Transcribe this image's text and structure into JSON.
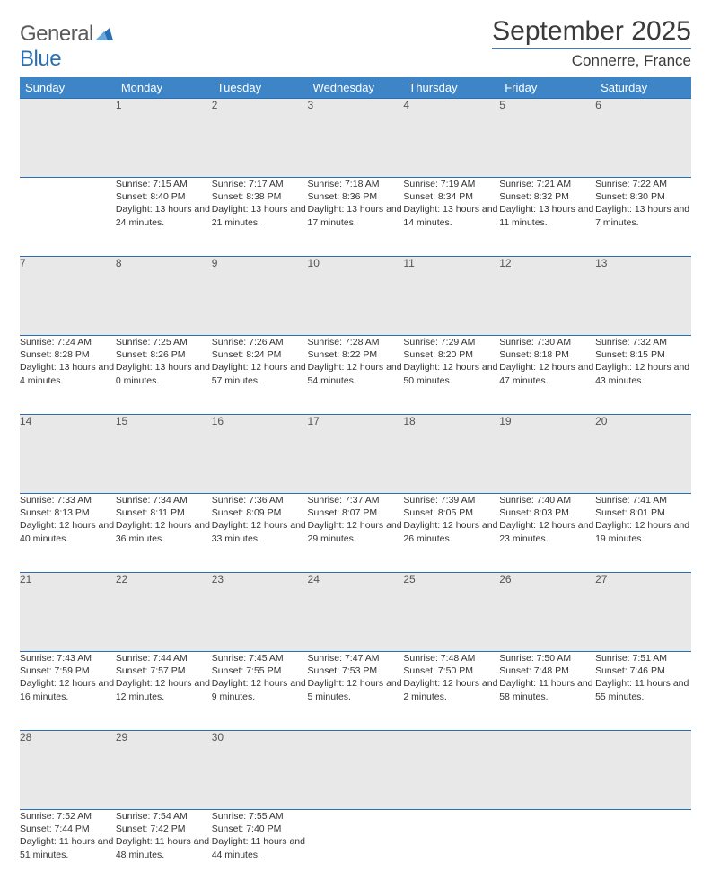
{
  "logo": {
    "text1": "General",
    "text2": "Blue"
  },
  "title": "September 2025",
  "location": "Connerre, France",
  "headers": [
    "Sunday",
    "Monday",
    "Tuesday",
    "Wednesday",
    "Thursday",
    "Friday",
    "Saturday"
  ],
  "colors": {
    "header_bg": "#3d85c6",
    "border": "#2b6fb0",
    "daynum_bg": "#e8e8e8",
    "text": "#333333"
  },
  "weeks": [
    {
      "nums": [
        "",
        "1",
        "2",
        "3",
        "4",
        "5",
        "6"
      ],
      "cells": [
        "",
        "Sunrise: 7:15 AM\nSunset: 8:40 PM\nDaylight: 13 hours and 24 minutes.",
        "Sunrise: 7:17 AM\nSunset: 8:38 PM\nDaylight: 13 hours and 21 minutes.",
        "Sunrise: 7:18 AM\nSunset: 8:36 PM\nDaylight: 13 hours and 17 minutes.",
        "Sunrise: 7:19 AM\nSunset: 8:34 PM\nDaylight: 13 hours and 14 minutes.",
        "Sunrise: 7:21 AM\nSunset: 8:32 PM\nDaylight: 13 hours and 11 minutes.",
        "Sunrise: 7:22 AM\nSunset: 8:30 PM\nDaylight: 13 hours and 7 minutes."
      ]
    },
    {
      "nums": [
        "7",
        "8",
        "9",
        "10",
        "11",
        "12",
        "13"
      ],
      "cells": [
        "Sunrise: 7:24 AM\nSunset: 8:28 PM\nDaylight: 13 hours and 4 minutes.",
        "Sunrise: 7:25 AM\nSunset: 8:26 PM\nDaylight: 13 hours and 0 minutes.",
        "Sunrise: 7:26 AM\nSunset: 8:24 PM\nDaylight: 12 hours and 57 minutes.",
        "Sunrise: 7:28 AM\nSunset: 8:22 PM\nDaylight: 12 hours and 54 minutes.",
        "Sunrise: 7:29 AM\nSunset: 8:20 PM\nDaylight: 12 hours and 50 minutes.",
        "Sunrise: 7:30 AM\nSunset: 8:18 PM\nDaylight: 12 hours and 47 minutes.",
        "Sunrise: 7:32 AM\nSunset: 8:15 PM\nDaylight: 12 hours and 43 minutes."
      ]
    },
    {
      "nums": [
        "14",
        "15",
        "16",
        "17",
        "18",
        "19",
        "20"
      ],
      "cells": [
        "Sunrise: 7:33 AM\nSunset: 8:13 PM\nDaylight: 12 hours and 40 minutes.",
        "Sunrise: 7:34 AM\nSunset: 8:11 PM\nDaylight: 12 hours and 36 minutes.",
        "Sunrise: 7:36 AM\nSunset: 8:09 PM\nDaylight: 12 hours and 33 minutes.",
        "Sunrise: 7:37 AM\nSunset: 8:07 PM\nDaylight: 12 hours and 29 minutes.",
        "Sunrise: 7:39 AM\nSunset: 8:05 PM\nDaylight: 12 hours and 26 minutes.",
        "Sunrise: 7:40 AM\nSunset: 8:03 PM\nDaylight: 12 hours and 23 minutes.",
        "Sunrise: 7:41 AM\nSunset: 8:01 PM\nDaylight: 12 hours and 19 minutes."
      ]
    },
    {
      "nums": [
        "21",
        "22",
        "23",
        "24",
        "25",
        "26",
        "27"
      ],
      "cells": [
        "Sunrise: 7:43 AM\nSunset: 7:59 PM\nDaylight: 12 hours and 16 minutes.",
        "Sunrise: 7:44 AM\nSunset: 7:57 PM\nDaylight: 12 hours and 12 minutes.",
        "Sunrise: 7:45 AM\nSunset: 7:55 PM\nDaylight: 12 hours and 9 minutes.",
        "Sunrise: 7:47 AM\nSunset: 7:53 PM\nDaylight: 12 hours and 5 minutes.",
        "Sunrise: 7:48 AM\nSunset: 7:50 PM\nDaylight: 12 hours and 2 minutes.",
        "Sunrise: 7:50 AM\nSunset: 7:48 PM\nDaylight: 11 hours and 58 minutes.",
        "Sunrise: 7:51 AM\nSunset: 7:46 PM\nDaylight: 11 hours and 55 minutes."
      ]
    },
    {
      "nums": [
        "28",
        "29",
        "30",
        "",
        "",
        "",
        ""
      ],
      "cells": [
        "Sunrise: 7:52 AM\nSunset: 7:44 PM\nDaylight: 11 hours and 51 minutes.",
        "Sunrise: 7:54 AM\nSunset: 7:42 PM\nDaylight: 11 hours and 48 minutes.",
        "Sunrise: 7:55 AM\nSunset: 7:40 PM\nDaylight: 11 hours and 44 minutes.",
        "",
        "",
        "",
        ""
      ]
    }
  ]
}
